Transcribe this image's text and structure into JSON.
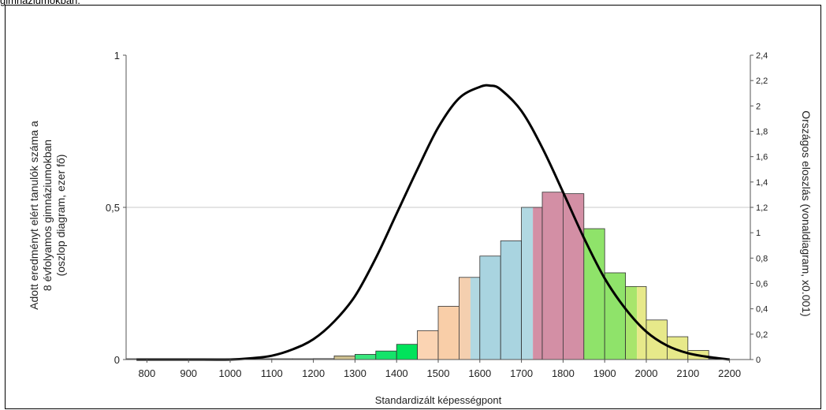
{
  "caption": "gimnáziumokban.",
  "chart_data": {
    "type": "bar",
    "xlabel": "Standardizált képességpont",
    "ylabel_left": "Adott eredményt elért tanulók száma a 8 évfolyamos gimnáziumokban (oszlop diagram, ezer fő)",
    "ylabel_left_lines": [
      "Adott eredményt elért tanulók száma a",
      "8 évfolyamos gimnáziumokban",
      "(oszlop diagram, ezer fő)"
    ],
    "ylabel_right": "Országos eloszlás (vonaldiagram, x0.001)",
    "xlim": [
      750,
      2250
    ],
    "ylim_left": [
      0,
      1
    ],
    "ylim_right": [
      0,
      2.4
    ],
    "x_ticks": [
      "800",
      "900",
      "1000",
      "1100",
      "1200",
      "1300",
      "1400",
      "1500",
      "1600",
      "1700",
      "1800",
      "1900",
      "2000",
      "2100",
      "2200"
    ],
    "y_left_ticks": [
      "0",
      "0,5",
      "1"
    ],
    "y_right_ticks": [
      "0",
      "0,2",
      "0,4",
      "0,6",
      "0,8",
      "1",
      "1,2",
      "1,4",
      "1,6",
      "1,8",
      "2",
      "2,2",
      "2,4"
    ],
    "grid": "horizontal at 0,5",
    "bars": [
      {
        "x": 775,
        "value": 0.001,
        "color": "#e6e6e6"
      },
      {
        "x": 825,
        "value": 0.001,
        "color": "#e6e6e6"
      },
      {
        "x": 875,
        "value": 0.001,
        "color": "#e6e6e6"
      },
      {
        "x": 925,
        "value": 0.001,
        "color": "#e6e6e6"
      },
      {
        "x": 975,
        "value": 0.001,
        "color": "#e6e6e6"
      },
      {
        "x": 1025,
        "value": 0.001,
        "color": "#e6e6e6"
      },
      {
        "x": 1075,
        "value": 0.002,
        "color": "#e6e6e6"
      },
      {
        "x": 1125,
        "value": 0.002,
        "color": "#e6e6e6"
      },
      {
        "x": 1175,
        "value": 0.0,
        "color": "#e6e6e6"
      },
      {
        "x": 1225,
        "value": 0.003,
        "color": "#e6e6e6"
      },
      {
        "x": 1275,
        "value": 0.012,
        "color": "#cdbf8f"
      },
      {
        "x": 1325,
        "value": 0.017,
        "color": "#39e67d"
      },
      {
        "x": 1375,
        "value": 0.028,
        "color": "#14e46a"
      },
      {
        "x": 1425,
        "value": 0.05,
        "color": "#00e35b"
      },
      {
        "x": 1475,
        "value": 0.095,
        "color": "#fbd4b3"
      },
      {
        "x": 1525,
        "value": 0.175,
        "color": "#f9cea8"
      },
      {
        "x": 1575,
        "value": 0.27,
        "color": "#f4cfaf",
        "split_color": "#b1d8e2"
      },
      {
        "x": 1625,
        "value": 0.34,
        "color": "#a9d4e0"
      },
      {
        "x": 1675,
        "value": 0.39,
        "color": "#a9d4e0"
      },
      {
        "x": 1725,
        "value": 0.5,
        "color": "#b1d8e2",
        "split_color": "#d38fa5"
      },
      {
        "x": 1775,
        "value": 0.55,
        "color": "#d38fa5"
      },
      {
        "x": 1825,
        "value": 0.545,
        "color": "#d38fa5"
      },
      {
        "x": 1875,
        "value": 0.43,
        "color": "#8fe36a"
      },
      {
        "x": 1925,
        "value": 0.285,
        "color": "#8fe36a"
      },
      {
        "x": 1975,
        "value": 0.24,
        "color": "#a8e56c",
        "split_color": "#e7e98a"
      },
      {
        "x": 2025,
        "value": 0.13,
        "color": "#e7e98a"
      },
      {
        "x": 2075,
        "value": 0.075,
        "color": "#e7e98a"
      },
      {
        "x": 2125,
        "value": 0.03,
        "color": "#e7e98a"
      },
      {
        "x": 2175,
        "value": 0.0,
        "color": "#e6e6e6"
      }
    ],
    "curve": {
      "name": "Országos eloszlás",
      "x": [
        775,
        800,
        900,
        1000,
        1050,
        1100,
        1150,
        1200,
        1250,
        1300,
        1350,
        1400,
        1450,
        1500,
        1550,
        1600,
        1625,
        1650,
        1700,
        1750,
        1800,
        1850,
        1900,
        1950,
        2000,
        2050,
        2100,
        2150,
        2200
      ],
      "y_right": [
        0.0,
        0.0,
        0.0,
        0.0,
        0.01,
        0.03,
        0.08,
        0.16,
        0.3,
        0.5,
        0.8,
        1.15,
        1.5,
        1.83,
        2.06,
        2.15,
        2.16,
        2.13,
        1.96,
        1.67,
        1.32,
        0.96,
        0.64,
        0.4,
        0.22,
        0.11,
        0.05,
        0.02,
        0.0
      ]
    }
  }
}
